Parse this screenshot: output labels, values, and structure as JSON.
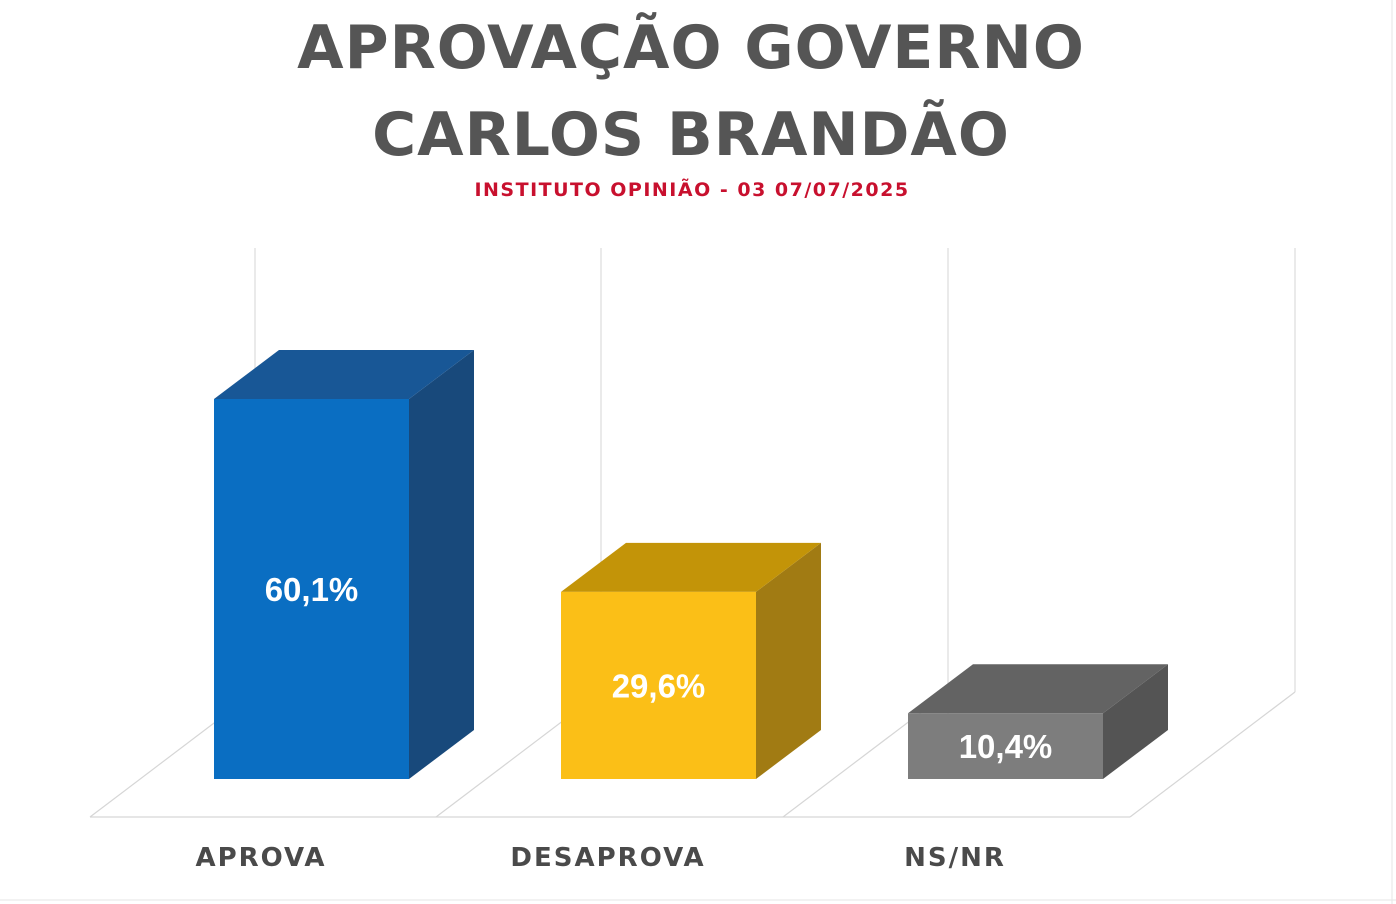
{
  "chart_data": {
    "type": "bar",
    "title": [
      "APROVAÇÃO GOVERNO",
      "CARLOS BRANDÃO"
    ],
    "subtitle": "INSTITUTO OPINIÃO - 03 07/07/2025",
    "categories": [
      "APROVA",
      "DESAPROVA",
      "NS/NR"
    ],
    "values": [
      60.1,
      29.6,
      10.4
    ],
    "value_labels": [
      "60,1%",
      "29,6%",
      "10,4%"
    ],
    "ylim": [
      0,
      60.1
    ],
    "grid": true,
    "three_d": true,
    "colors": {
      "bars": [
        {
          "front": "#0a6ec2",
          "top": "#185796",
          "side": "#18497b"
        },
        {
          "front": "#fbbf17",
          "top": "#c39408",
          "side": "#a17b13"
        },
        {
          "front": "#7d7d7d",
          "top": "#636363",
          "side": "#545454"
        }
      ],
      "title": "#555555",
      "subtitle": "#c8102e",
      "labels": "#4a4a4a"
    }
  }
}
